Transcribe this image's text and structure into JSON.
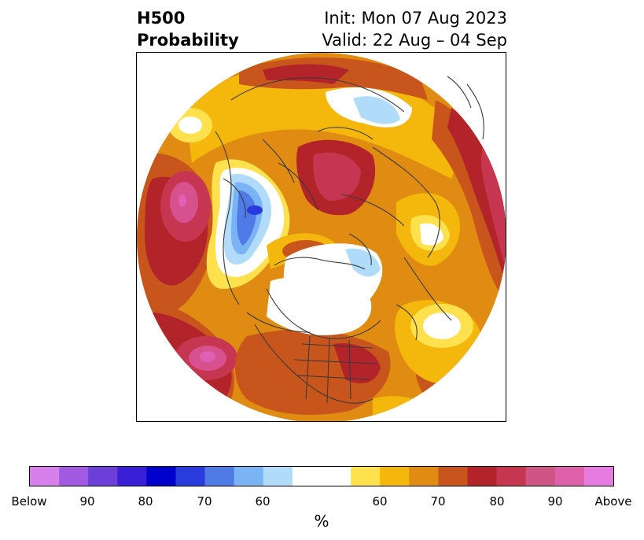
{
  "title": {
    "left_line1": "H500",
    "left_line2": "Probability",
    "right_line1": "Init: Mon 07 Aug 2023",
    "right_line2": "Valid: 22 Aug – 04 Sep"
  },
  "map": {
    "projection": "north-polar-stereographic",
    "field": "500 hPa height probability",
    "colors": {
      "below_60": "#b0dcfa",
      "below_65": "#7ab4f5",
      "below_70": "#4f7be6",
      "below_75": "#2839de",
      "above_60": "#ffe14e",
      "above_65": "#f4b70b",
      "above_70": "#e08c12",
      "above_75": "#c8561c",
      "above_80": "#b2232a",
      "above_85": "#c63650",
      "above_90": "#d6518e",
      "above_95": "#df60b5",
      "coastline": "#3a3a3a"
    }
  },
  "colorbar": {
    "colors": [
      "#d77fea",
      "#a35ae2",
      "#6c3fd9",
      "#3a1fd6",
      "#0000cc",
      "#2a3cdb",
      "#4f7be6",
      "#7ab4f5",
      "#b0dcfa",
      "#ffffff",
      "#ffe14e",
      "#f4b70b",
      "#e08c12",
      "#c8561c",
      "#b2232a",
      "#c63650",
      "#cf5585",
      "#de60a8",
      "#e67ce0"
    ],
    "widths": [
      1,
      1,
      1,
      1,
      1,
      1,
      1,
      1,
      1,
      2,
      1,
      1,
      1,
      1,
      1,
      1,
      1,
      1,
      1
    ],
    "tick_labels": [
      "Below",
      "90",
      "80",
      "70",
      "60",
      "60",
      "70",
      "80",
      "90",
      "Above"
    ],
    "unit": "%"
  }
}
